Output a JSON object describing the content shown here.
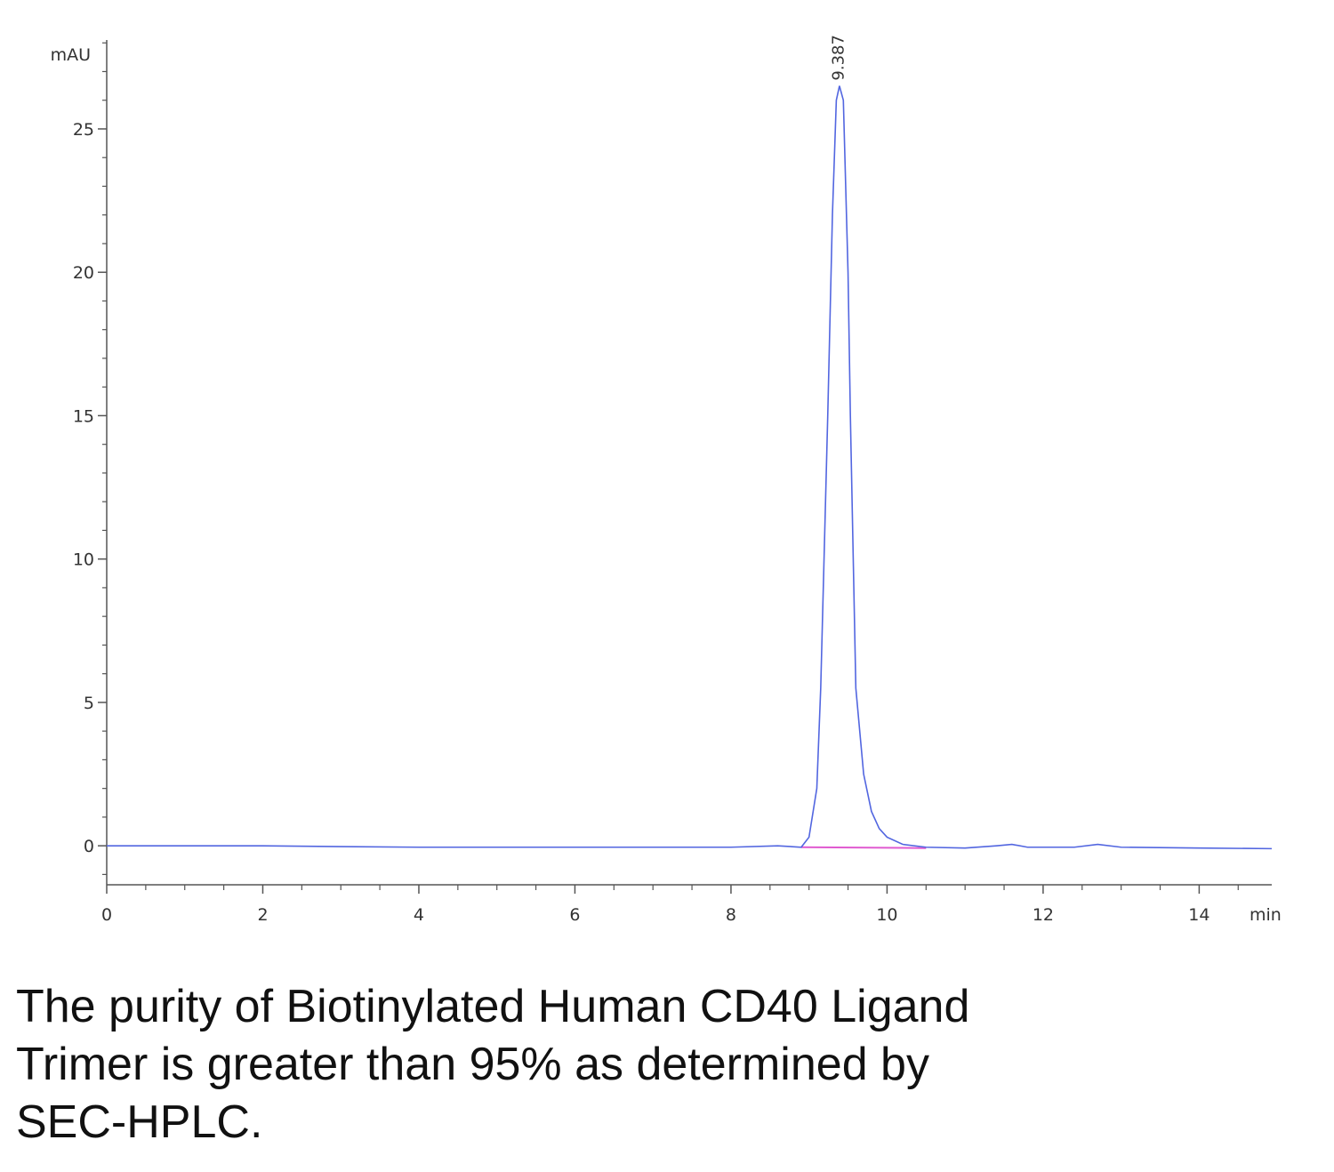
{
  "chart_data": {
    "type": "line",
    "ylabel": "mAU",
    "xlabel": "min",
    "x": [
      0,
      1,
      2,
      3,
      4,
      5,
      6,
      7,
      8,
      8.6,
      8.9,
      9.0,
      9.1,
      9.15,
      9.24,
      9.3,
      9.35,
      9.39,
      9.44,
      9.5,
      9.53,
      9.6,
      9.7,
      9.8,
      9.9,
      10.0,
      10.2,
      10.5,
      11.0,
      11.4,
      11.6,
      11.8,
      12.4,
      12.7,
      13.0,
      14.0,
      14.93
    ],
    "series": [
      {
        "color": "#5266e0",
        "values": [
          0,
          0,
          0,
          -0.03,
          -0.05,
          -0.05,
          -0.05,
          -0.05,
          -0.05,
          0,
          -0.05,
          0.3,
          2,
          5.5,
          15,
          22,
          26,
          26.5,
          26,
          20,
          15,
          5.5,
          2.5,
          1.2,
          0.6,
          0.3,
          0.05,
          -0.05,
          -0.08,
          0,
          0.05,
          -0.05,
          -0.05,
          0.05,
          -0.05,
          -0.08,
          -0.1
        ]
      }
    ],
    "baseline": {
      "color": "#e05ad0",
      "x": [
        8.9,
        10.5
      ],
      "values": [
        -0.05,
        -0.08
      ]
    },
    "annotations": [
      {
        "label": "9.387",
        "x": 9.387,
        "y": 26.5
      }
    ],
    "xlim": [
      0,
      14.93
    ],
    "ylim": [
      -1.36,
      28.1
    ],
    "xticks": [
      0,
      2,
      4,
      6,
      8,
      10,
      12,
      14
    ],
    "yticks": [
      0,
      5,
      10,
      15,
      20,
      25
    ],
    "xminorticks": [
      0.5,
      1,
      1.5,
      2.5,
      3,
      3.5,
      4.5,
      5,
      5.5,
      6.5,
      7,
      7.5,
      8.5,
      9,
      9.5,
      10.5,
      11,
      11.5,
      12.5,
      13,
      13.5,
      14.5
    ],
    "yminorticks": [
      -1,
      1,
      2,
      3,
      4,
      6,
      7,
      8,
      9,
      11,
      12,
      13,
      14,
      16,
      17,
      18,
      19,
      21,
      22,
      23,
      24,
      26,
      27,
      28
    ]
  },
  "caption": [
    "The purity of Biotinylated Human CD40 Ligand",
    "Trimer is greater than 95% as determined by",
    "SEC-HPLC."
  ]
}
